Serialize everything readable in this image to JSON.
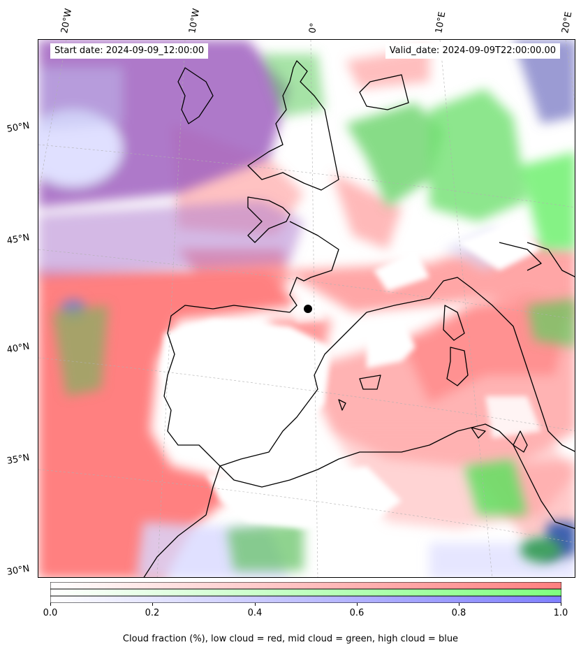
{
  "header": {
    "start_date": "Start date: 2024-09-09_12:00:00",
    "valid_date": "Valid_date: 2024-09-09T22:00:00.00"
  },
  "map": {
    "longitude_labels": [
      "20°W",
      "10°W",
      "0°",
      "10°E",
      "20°E"
    ],
    "latitude_labels": [
      "50°N",
      "45°N",
      "40°N",
      "35°N",
      "30°N"
    ],
    "layer_colors": {
      "low": "#ff7f7f",
      "mid": "#7fff7f",
      "high": "#7f7fff"
    }
  },
  "colorbar": {
    "ticks": [
      "0.0",
      "0.2",
      "0.4",
      "0.6",
      "0.8",
      "1.0"
    ],
    "caption": "Cloud fraction (%), low cloud = red, mid cloud = green, high cloud = blue"
  }
}
